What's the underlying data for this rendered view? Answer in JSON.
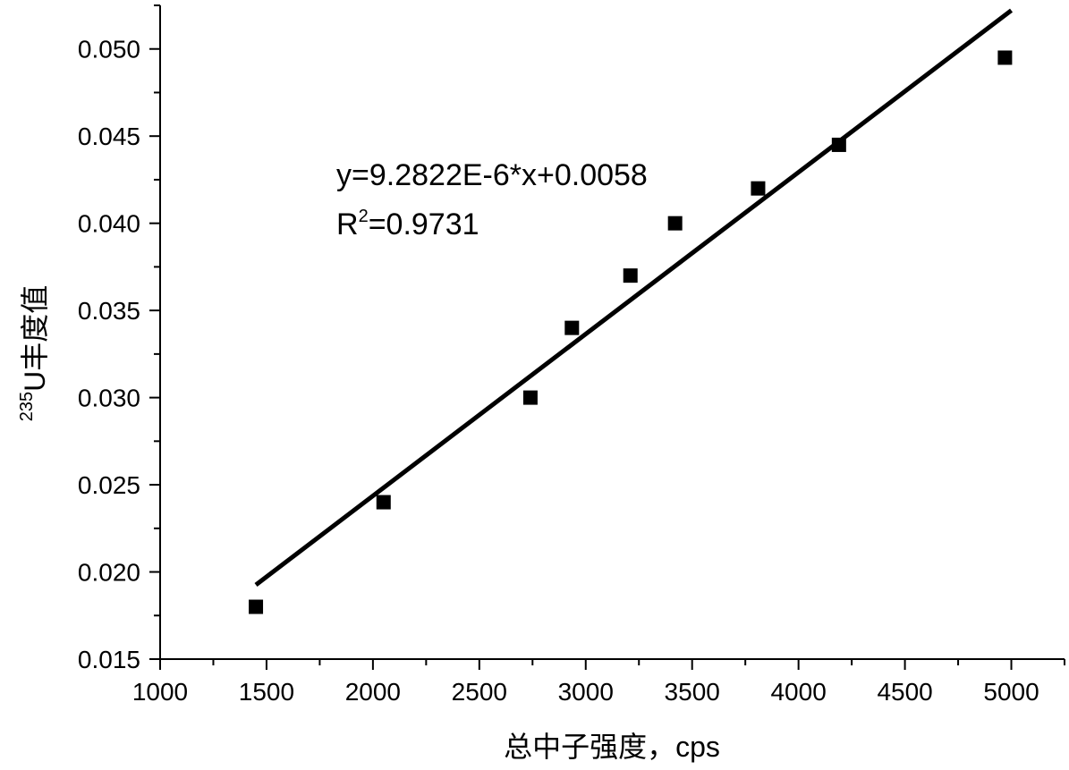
{
  "chart_data": {
    "type": "scatter",
    "xlabel": "总中子强度，cps",
    "ylabel_sup": "235",
    "ylabel": "U丰度值",
    "xlim": [
      1000,
      5250
    ],
    "ylim": [
      0.015,
      0.0525
    ],
    "xticks": [
      1000,
      1500,
      2000,
      2500,
      3000,
      3500,
      4000,
      4500,
      5000
    ],
    "yticks": [
      0.015,
      0.02,
      0.025,
      0.03,
      0.035,
      0.04,
      0.045,
      0.05
    ],
    "xtick_labels": [
      "1000",
      "1500",
      "2000",
      "2500",
      "3000",
      "3500",
      "4000",
      "4500",
      "5000"
    ],
    "ytick_labels": [
      "0.015",
      "0.020",
      "0.025",
      "0.030",
      "0.035",
      "0.040",
      "0.045",
      "0.050"
    ],
    "x_minor_step": 250,
    "y_minor_step": 0.0025,
    "grid": false,
    "series": [
      {
        "x": [
          1450,
          2050,
          2740,
          2935,
          3210,
          3420,
          3810,
          4190,
          4970
        ],
        "y": [
          0.018,
          0.024,
          0.03,
          0.034,
          0.037,
          0.04,
          0.042,
          0.0445,
          0.0495
        ],
        "marker": "square",
        "color": "#000000"
      }
    ],
    "fit": {
      "slope": 9.2822e-06,
      "intercept": 0.0058,
      "x_range": [
        1450,
        5000
      ],
      "color": "#000000"
    },
    "annotation": {
      "equation": "y=9.2822E-6*x+0.0058",
      "r2_prefix": "R",
      "r2_sup": "2",
      "r2_value": "=0.9731"
    }
  }
}
